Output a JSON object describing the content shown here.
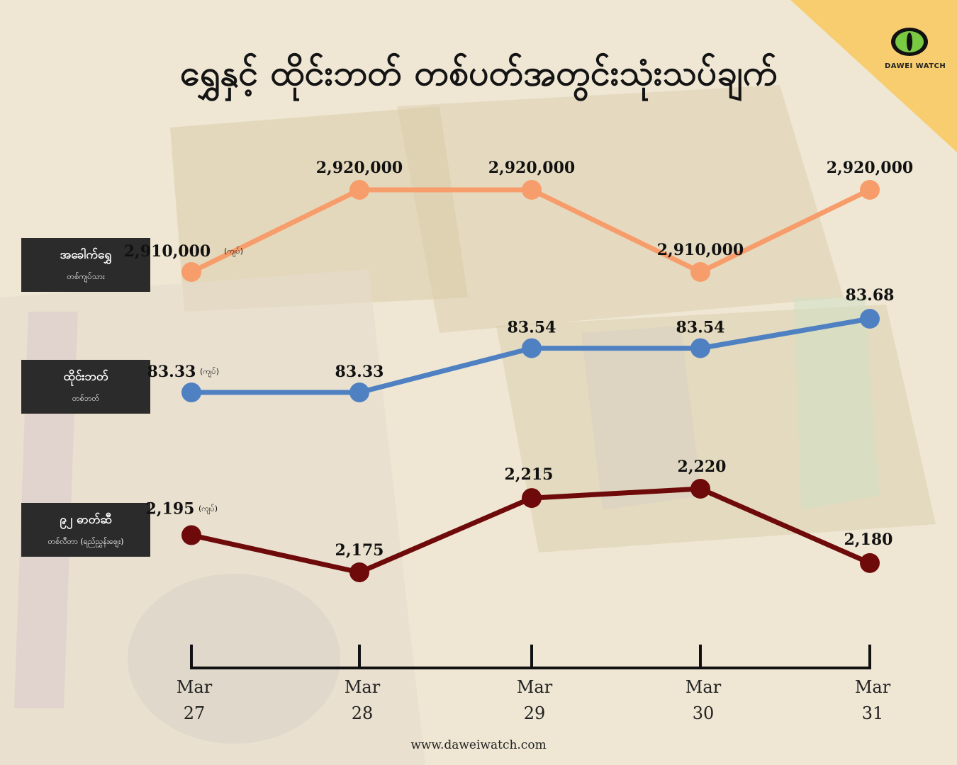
{
  "title": "ရွှေနှင့် ထိုင်းဘတ် တစ်ပတ်အတွင်းသုံးသပ်ချက်",
  "brand": {
    "name": "DAWEI WATCH",
    "accent": "#7ac943"
  },
  "footer": "www.daweiwatch.com",
  "unit_suffix": "(ကျပ်)",
  "series_labels": [
    {
      "name": "အခေါက်ရွှေ",
      "unit": "တစ်ကျပ်သား"
    },
    {
      "name": "ထိုင်းဘတ်",
      "unit": "တစ်ဘတ်"
    },
    {
      "name": "၉၂ ဓာတ်ဆီ",
      "unit": "တစ်လီတာ (ရည်ညွှန်းဈေး)"
    }
  ],
  "chart_data": {
    "type": "line",
    "x": [
      "Mar 27",
      "Mar 28",
      "Mar 29",
      "Mar 30",
      "Mar 31"
    ],
    "x_month": [
      "Mar",
      "Mar",
      "Mar",
      "Mar",
      "Mar"
    ],
    "x_day": [
      "27",
      "28",
      "29",
      "30",
      "31"
    ],
    "series": [
      {
        "name": "အခေါက်ရွှေ",
        "values": [
          2910000,
          2920000,
          2920000,
          2910000,
          2920000
        ],
        "labels": [
          "2,910,000",
          "2,920,000",
          "2,920,000",
          "2,910,000",
          "2,920,000"
        ],
        "color": "#f79d6b",
        "ylim": [
          2910000,
          2920000
        ]
      },
      {
        "name": "ထိုင်းဘတ်",
        "values": [
          83.33,
          83.33,
          83.54,
          83.54,
          83.68
        ],
        "labels": [
          "83.33",
          "83.33",
          "83.54",
          "83.54",
          "83.68"
        ],
        "color": "#4f81c2",
        "ylim": [
          83.33,
          83.68
        ]
      },
      {
        "name": "၉၂ ဓာတ်ဆီ",
        "values": [
          2195,
          2175,
          2215,
          2220,
          2180
        ],
        "labels": [
          "2,195",
          "2,175",
          "2,215",
          "2,220",
          "2,180"
        ],
        "color": "#6e0a0a",
        "ylim": [
          2175,
          2220
        ]
      }
    ]
  }
}
